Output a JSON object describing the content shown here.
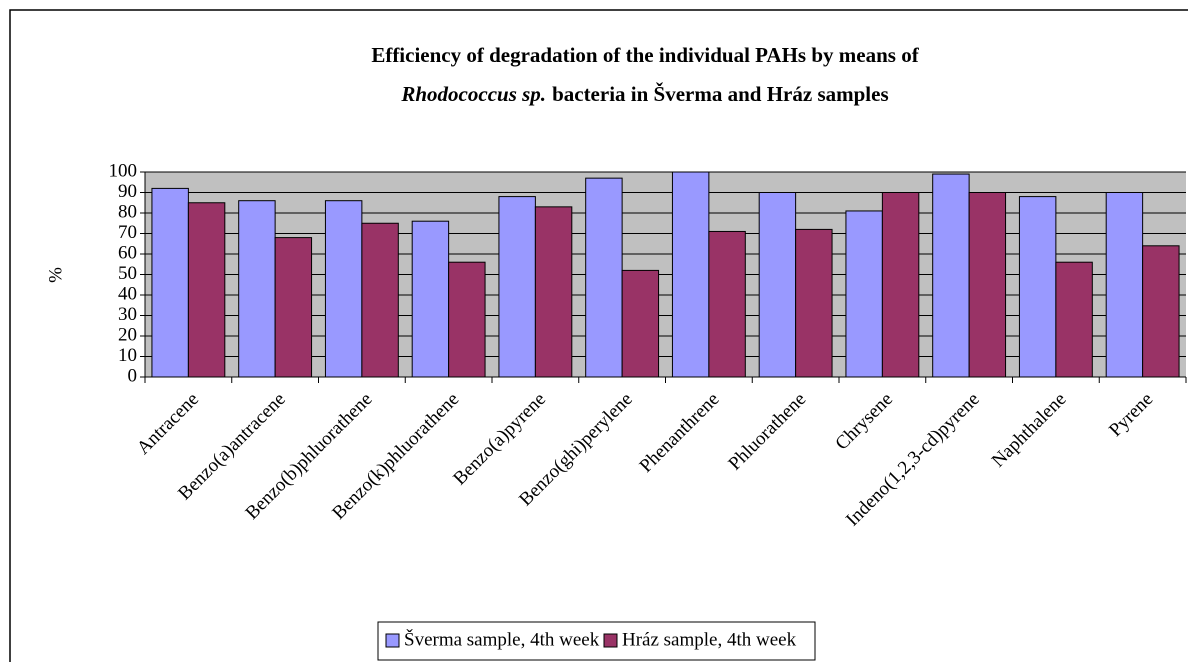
{
  "chart_data": {
    "type": "bar",
    "title": [
      "Efficiency of degradation of the individual PAHs by means of",
      "Rhodococcus sp.",
      "bacteria in Šverma and Hráz samples"
    ],
    "y_label": "%",
    "categories": [
      "Antracene",
      "Benzo(a)antracene",
      "Benzo(b)phluorathene",
      "Benzo(k)phluorathene",
      "Benzo(a)pyrene",
      "Benzo(ghi)perylene",
      "Phenanthrene",
      "Phluorathene",
      "Chrysene",
      "Indeno(1,2,3-cd)pyrene",
      "Naphthalene",
      "Pyrene"
    ],
    "series": [
      {
        "name": "Šverma sample, 4th week",
        "color": "#9999ff",
        "values": [
          92,
          86,
          86,
          76,
          88,
          97,
          100,
          90,
          81,
          99,
          88,
          90
        ]
      },
      {
        "name": "Hráz sample, 4th week",
        "color": "#993366",
        "values": [
          85,
          68,
          75,
          56,
          83,
          52,
          71,
          72,
          90,
          90,
          56,
          64
        ]
      }
    ],
    "ylim": [
      0,
      100
    ],
    "yticks": [
      0,
      10,
      20,
      30,
      40,
      50,
      60,
      70,
      80,
      90,
      100
    ],
    "grid": true,
    "plot_background": "#c0c0c0",
    "legend": "bottom"
  }
}
